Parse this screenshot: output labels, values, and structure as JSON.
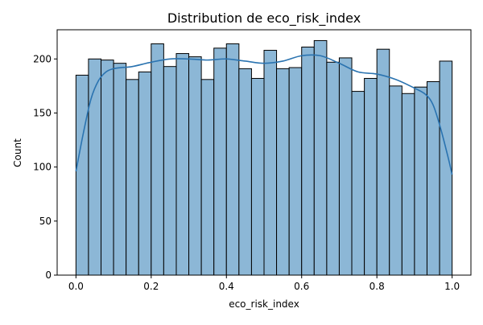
{
  "chart_data": {
    "type": "bar",
    "title": "Distribution de eco_risk_index",
    "xlabel": "eco_risk_index",
    "ylabel": "Count",
    "xlim": [
      -0.05,
      1.05
    ],
    "ylim": [
      0,
      227
    ],
    "xticks": [
      0.0,
      0.2,
      0.4,
      0.6,
      0.8,
      1.0
    ],
    "xtick_labels": [
      "0.0",
      "0.2",
      "0.4",
      "0.6",
      "0.8",
      "1.0"
    ],
    "yticks": [
      0,
      50,
      100,
      150,
      200
    ],
    "ytick_labels": [
      "0",
      "50",
      "100",
      "150",
      "200"
    ],
    "bin_edges": [
      0,
      0.0333,
      0.0667,
      0.1,
      0.1333,
      0.1667,
      0.2,
      0.2333,
      0.2667,
      0.3,
      0.3333,
      0.3667,
      0.4,
      0.4333,
      0.4667,
      0.5,
      0.5333,
      0.5667,
      0.6,
      0.6333,
      0.6667,
      0.7,
      0.7333,
      0.7667,
      0.8,
      0.8333,
      0.8667,
      0.9,
      0.9333,
      0.9667,
      1.0
    ],
    "values": [
      185,
      200,
      199,
      196,
      181,
      188,
      214,
      193,
      205,
      202,
      181,
      210,
      214,
      191,
      182,
      208,
      191,
      192,
      211,
      217,
      197,
      201,
      170,
      182,
      209,
      175,
      168,
      174,
      179,
      198
    ],
    "kde": {
      "x": [
        0.0,
        0.02,
        0.04,
        0.06,
        0.08,
        0.1,
        0.12,
        0.15,
        0.2,
        0.25,
        0.3,
        0.35,
        0.4,
        0.45,
        0.5,
        0.55,
        0.6,
        0.65,
        0.7,
        0.75,
        0.8,
        0.85,
        0.9,
        0.93,
        0.95,
        0.97,
        0.99,
        1.0
      ],
      "y": [
        96,
        132,
        163,
        180,
        188,
        191,
        192,
        193,
        197,
        200,
        200,
        199,
        200,
        198,
        196,
        198,
        203,
        203,
        196,
        188,
        186,
        181,
        173,
        167,
        157,
        135,
        108,
        93
      ]
    },
    "bar_color": "#8cb7d6",
    "bar_edge_color": "#000000",
    "kde_color": "#2a73b0",
    "grid": false,
    "legend": "none"
  }
}
